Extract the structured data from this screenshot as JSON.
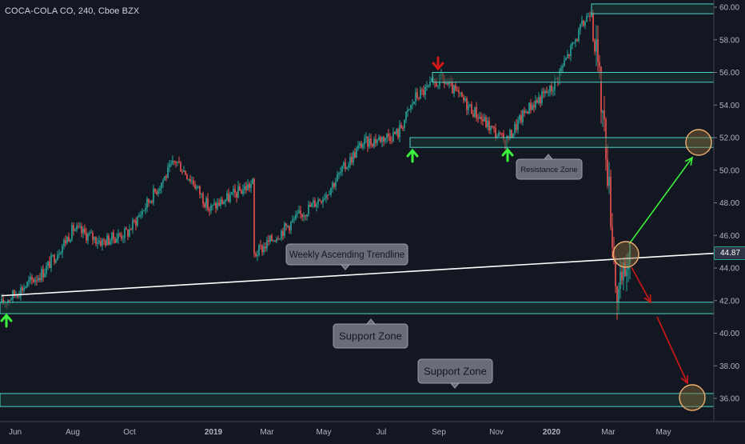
{
  "header": {
    "title": "COCA-COLA CO, 240, Cboe BZX"
  },
  "last_price": "44.87",
  "colors": {
    "background": "#131722",
    "up": "#26a69a",
    "down": "#ef5350",
    "zone_border": "#4fd1c5",
    "zone_fill": "#1b3a33",
    "trendline": "#ffffff",
    "label_bg": "#6a6d78",
    "green_arrow": "#3cf03c",
    "red_arrow": "#d01818",
    "circle": "#f0b070"
  },
  "chart_data": {
    "type": "candlestick",
    "symbol": "COCA-COLA CO",
    "timeframe": "240",
    "exchange": "Cboe BZX",
    "ylim": [
      34.8,
      60.6
    ],
    "yticks": [
      "60.00",
      "58.00",
      "56.00",
      "54.00",
      "52.00",
      "50.00",
      "48.00",
      "46.00",
      "44.00",
      "42.00",
      "40.00",
      "38.00",
      "36.00"
    ],
    "xticks": [
      "Jun",
      "Aug",
      "Oct",
      "2019",
      "Mar",
      "May",
      "Jul",
      "Sep",
      "Nov",
      "2020",
      "Mar",
      "May"
    ],
    "price_path": [
      [
        "Jun",
        41.8
      ],
      [
        "Jul",
        43.8
      ],
      [
        "Aug",
        46.4
      ],
      [
        "Sep",
        45.6
      ],
      [
        "Oct",
        46.2
      ],
      [
        "Nov",
        50.6
      ],
      [
        "Dec",
        49.2
      ],
      [
        "2019",
        47.6
      ],
      [
        "Feb",
        49.2
      ],
      [
        "Mar",
        44.8
      ],
      [
        "Apr",
        46.6
      ],
      [
        "May",
        48.6
      ],
      [
        "Jun",
        51.6
      ],
      [
        "Jul",
        52.3
      ],
      [
        "Aug",
        54.5
      ],
      [
        "Sep",
        55.6
      ],
      [
        "Oct",
        54.0
      ],
      [
        "Nov",
        51.7
      ],
      [
        "Dec",
        53.8
      ],
      [
        "2020",
        55.0
      ],
      [
        "Feb",
        60.0
      ],
      [
        "Mar",
        51.5
      ],
      [
        "Mar",
        42.0
      ],
      [
        "Mar",
        44.87
      ]
    ],
    "zones": [
      {
        "from": 59.6,
        "to": 60.2
      },
      {
        "from": 55.4,
        "to": 56.0
      },
      {
        "from": 51.4,
        "to": 52.0
      },
      {
        "from": 41.2,
        "to": 41.9
      },
      {
        "from": 35.5,
        "to": 36.3
      }
    ],
    "trendline": {
      "start": [
        "Jun",
        42.3
      ],
      "end": [
        "May",
        44.9
      ]
    },
    "annotations": [
      "Weekly Ascending Trendline",
      "Support Zone",
      "Resistance Zone",
      "Support Zone"
    ]
  }
}
